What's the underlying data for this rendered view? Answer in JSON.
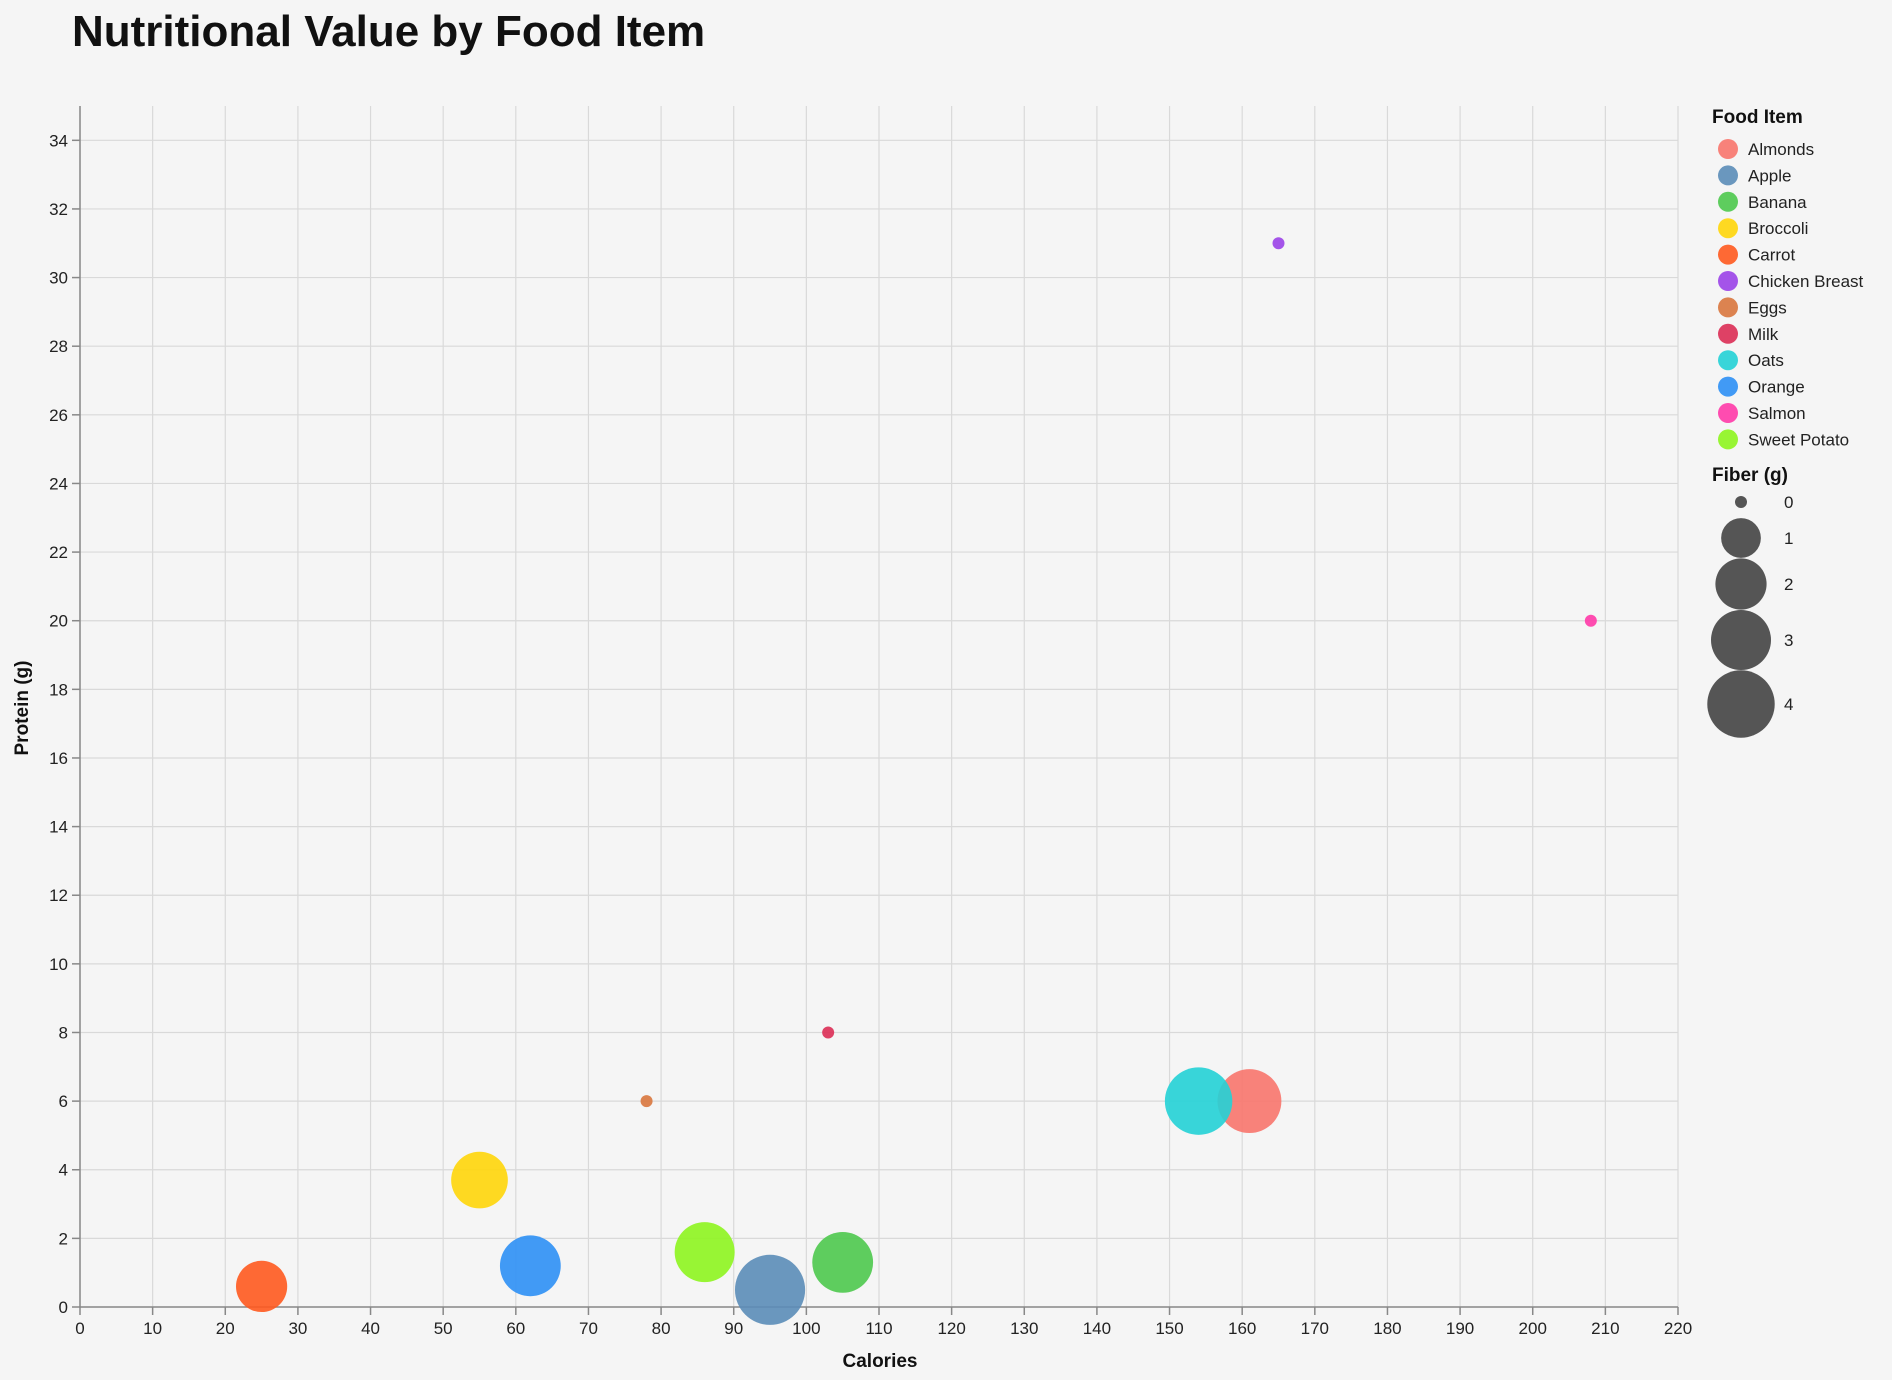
{
  "chart_data": {
    "type": "scatter",
    "title": "Nutritional Value by Food Item",
    "xlabel": "Calories",
    "ylabel": "Protein (g)",
    "xlim": [
      0,
      220
    ],
    "ylim": [
      0,
      35
    ],
    "x_ticks": [
      0,
      10,
      20,
      30,
      40,
      50,
      60,
      70,
      80,
      90,
      100,
      110,
      120,
      130,
      140,
      150,
      160,
      170,
      180,
      190,
      200,
      210,
      220
    ],
    "y_ticks": [
      0,
      2,
      4,
      6,
      8,
      10,
      12,
      14,
      16,
      18,
      20,
      22,
      24,
      26,
      28,
      30,
      32,
      34
    ],
    "grid": true,
    "color_legend": {
      "title": "Food Item",
      "position": "right"
    },
    "size_legend": {
      "title": "Fiber (g)",
      "position": "right",
      "values": [
        0,
        1,
        2,
        3,
        4
      ]
    },
    "points": [
      {
        "name": "Almonds",
        "calories": 161,
        "protein": 6,
        "fiber": 3.5,
        "color": "#f8766d"
      },
      {
        "name": "Apple",
        "calories": 95,
        "protein": 0.5,
        "fiber": 4.4,
        "color": "#5b8db8"
      },
      {
        "name": "Banana",
        "calories": 105,
        "protein": 1.3,
        "fiber": 3.1,
        "color": "#4ec94e"
      },
      {
        "name": "Broccoli",
        "calories": 55,
        "protein": 3.7,
        "fiber": 2.6,
        "color": "#ffd60a"
      },
      {
        "name": "Carrot",
        "calories": 25,
        "protein": 0.6,
        "fiber": 2.0,
        "color": "#ff5a1f"
      },
      {
        "name": "Chicken Breast",
        "calories": 165,
        "protein": 31,
        "fiber": 0,
        "color": "#9b42e8"
      },
      {
        "name": "Eggs",
        "calories": 78,
        "protein": 6,
        "fiber": 0,
        "color": "#d9773e"
      },
      {
        "name": "Milk",
        "calories": 103,
        "protein": 8,
        "fiber": 0,
        "color": "#dc2e55"
      },
      {
        "name": "Oats",
        "calories": 154,
        "protein": 6,
        "fiber": 4.0,
        "color": "#24d1d6"
      },
      {
        "name": "Orange",
        "calories": 62,
        "protein": 1.2,
        "fiber": 3.1,
        "color": "#2e90f5"
      },
      {
        "name": "Salmon",
        "calories": 208,
        "protein": 20,
        "fiber": 0,
        "color": "#ff3aa8"
      },
      {
        "name": "Sweet Potato",
        "calories": 86,
        "protein": 1.6,
        "fiber": 3.0,
        "color": "#8ef51f"
      }
    ]
  }
}
